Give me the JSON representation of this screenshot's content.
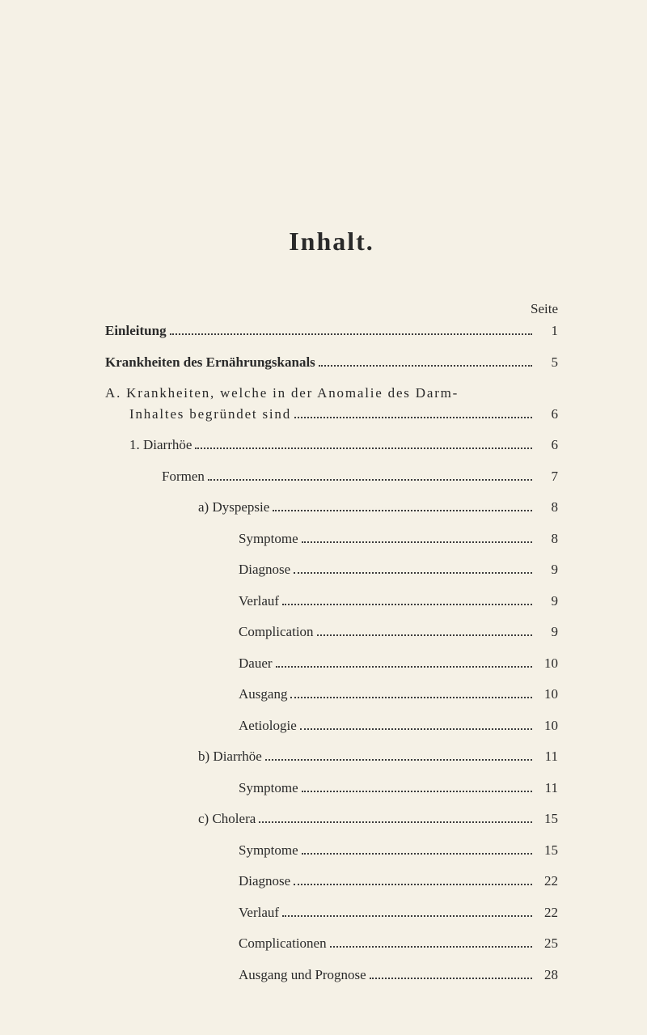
{
  "heading": "Inhalt.",
  "page_header": "Seite",
  "typography": {
    "heading_fontsize": 32,
    "body_fontsize": 17,
    "font_family": "Georgia, Times New Roman, serif",
    "text_color": "#2a2a2a",
    "background_color": "#f5f1e6"
  },
  "entries": [
    {
      "label": "Einleitung",
      "page": "1",
      "indent": 0,
      "bold": true
    },
    {
      "label": "Krankheiten des Ernährungskanals",
      "page": "5",
      "indent": 0,
      "bold": true
    },
    {
      "label_line1": "A. Krankheiten, welche in der Anomalie des Darm-",
      "label_line2": "Inhaltes begründet sind",
      "page": "6",
      "indent": 0,
      "indent2": 1,
      "multiline": true,
      "spaced": true
    },
    {
      "label": "1. Diarrhöe",
      "page": "6",
      "indent": 1
    },
    {
      "label": "Formen",
      "page": "7",
      "indent": 2
    },
    {
      "label": "a) Dyspepsie",
      "page": "8",
      "indent": 3
    },
    {
      "label": "Symptome",
      "page": "8",
      "indent": 4
    },
    {
      "label": "Diagnose",
      "page": "9",
      "indent": 4
    },
    {
      "label": "Verlauf",
      "page": "9",
      "indent": 4
    },
    {
      "label": "Complication",
      "page": "9",
      "indent": 4
    },
    {
      "label": "Dauer",
      "page": "10",
      "indent": 4
    },
    {
      "label": "Ausgang",
      "page": "10",
      "indent": 4
    },
    {
      "label": "Aetiologie",
      "page": "10",
      "indent": 4
    },
    {
      "label": "b) Diarrhöe",
      "page": "11",
      "indent": 3
    },
    {
      "label": "Symptome",
      "page": "11",
      "indent": 4
    },
    {
      "label": "c) Cholera",
      "page": "15",
      "indent": 3
    },
    {
      "label": "Symptome",
      "page": "15",
      "indent": 4
    },
    {
      "label": "Diagnose",
      "page": "22",
      "indent": 4
    },
    {
      "label": "Verlauf",
      "page": "22",
      "indent": 4
    },
    {
      "label": "Complicationen",
      "page": "25",
      "indent": 4
    },
    {
      "label": "Ausgang und Prognose",
      "page": "28",
      "indent": 4
    }
  ]
}
